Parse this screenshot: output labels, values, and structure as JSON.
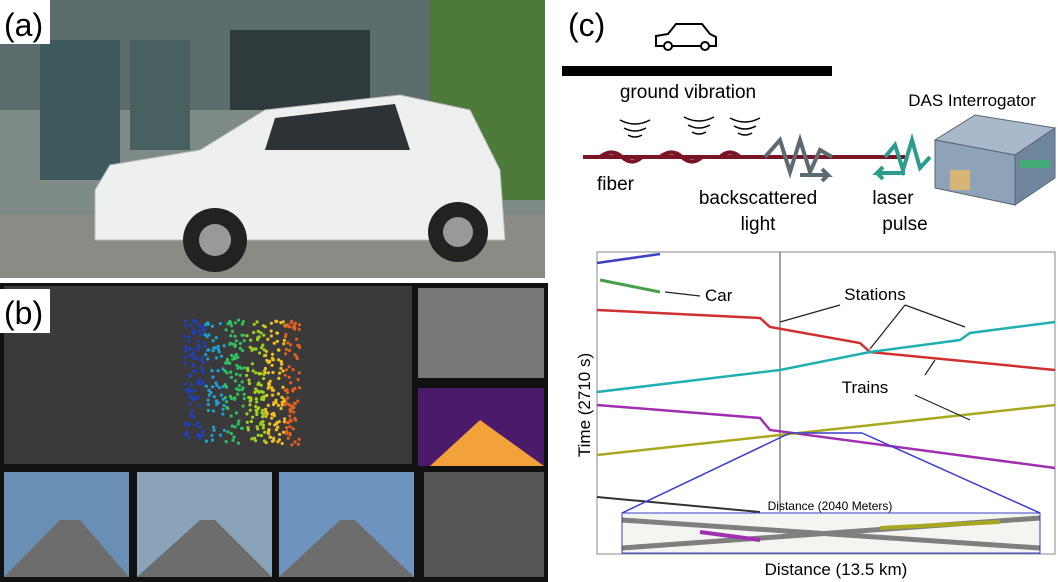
{
  "panels": {
    "a": {
      "label": "(a)"
    },
    "b": {
      "label": "(b)"
    },
    "c": {
      "label": "(c)",
      "diagram": {
        "ground_vibration": "ground vibration",
        "interrogator": "DAS Interrogator",
        "fiber": "fiber",
        "backscattered": [
          "backscattered",
          "light"
        ],
        "laser": [
          "laser",
          "pulse"
        ]
      },
      "plot": {
        "car": "Car",
        "stations": "Stations",
        "trains": "Trains",
        "y_label": "Time (2710 s)",
        "inset_label": "Distance (2040 Meters)",
        "x_label": "Distance (13.5 km)"
      }
    }
  }
}
